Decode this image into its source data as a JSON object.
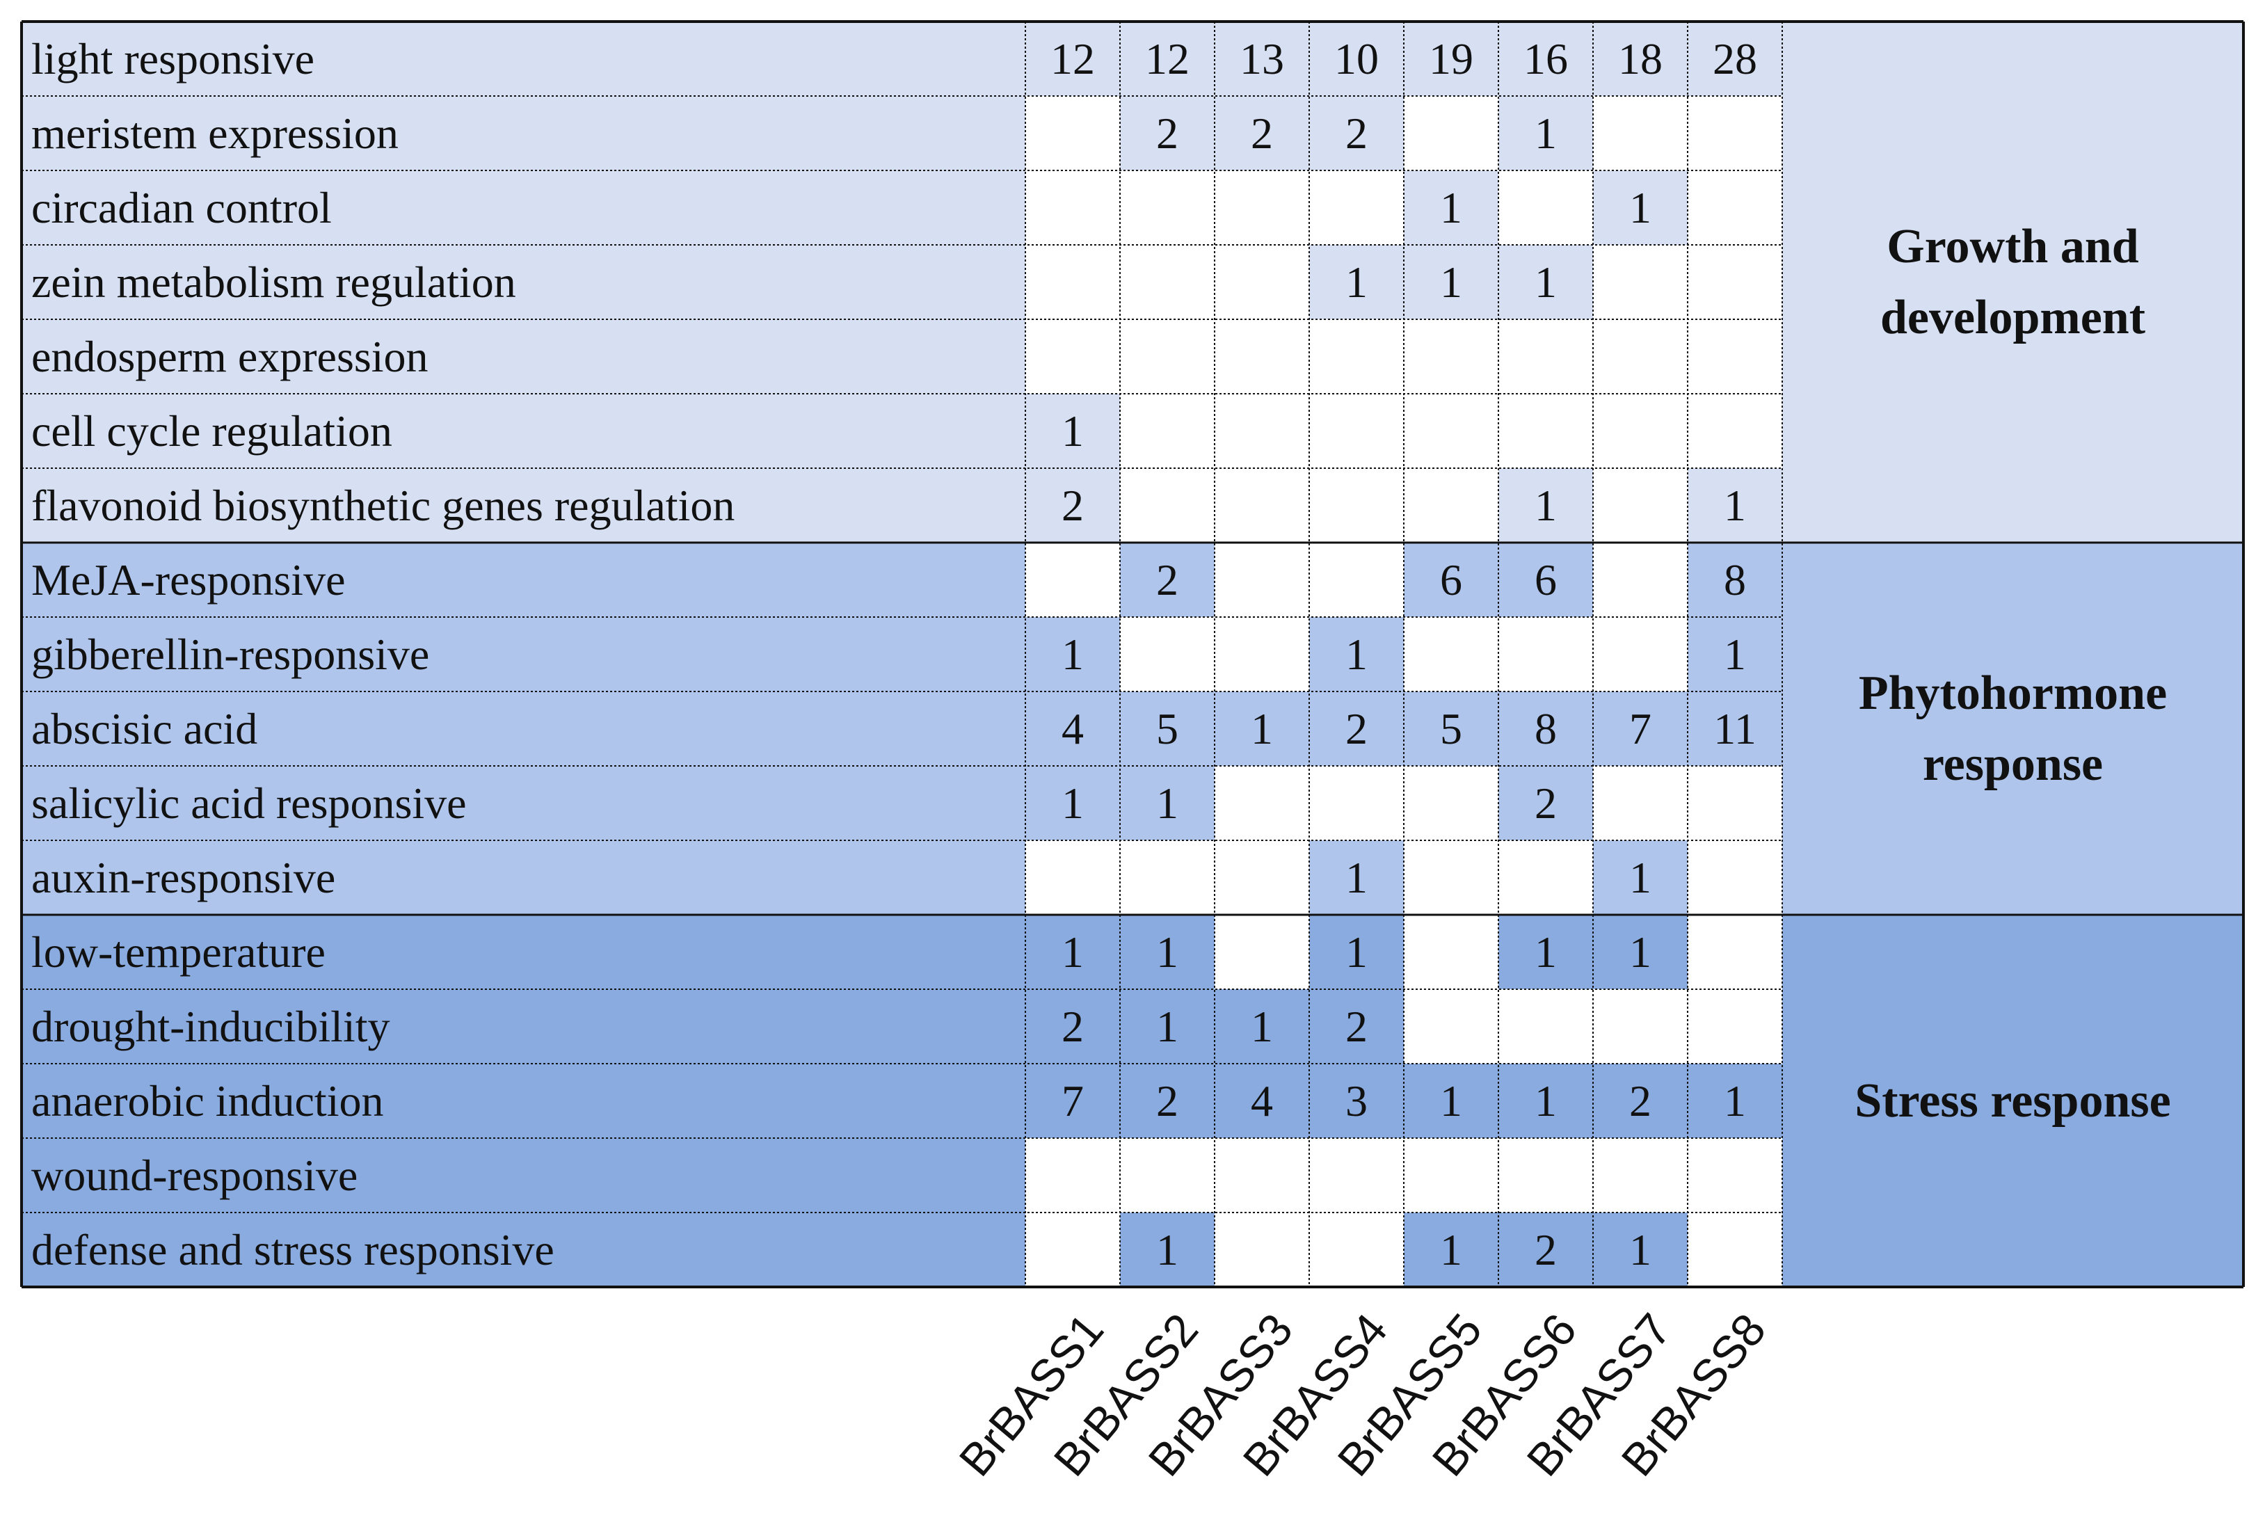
{
  "table": {
    "columns": [
      "BrBASS1",
      "BrBASS2",
      "BrBASS3",
      "BrBASS4",
      "BrBASS5",
      "BrBASS6",
      "BrBASS7",
      "BrBASS8"
    ],
    "groups": [
      {
        "label": "Growth and development",
        "rows": [
          {
            "label": "light responsive",
            "values": [
              12,
              12,
              13,
              10,
              19,
              16,
              18,
              28
            ]
          },
          {
            "label": "meristem expression",
            "values": [
              null,
              2,
              2,
              2,
              null,
              1,
              null,
              null
            ]
          },
          {
            "label": "circadian control",
            "values": [
              null,
              null,
              null,
              null,
              1,
              null,
              1,
              null
            ]
          },
          {
            "label": "zein metabolism regulation",
            "values": [
              null,
              null,
              null,
              1,
              1,
              1,
              null,
              null
            ]
          },
          {
            "label": "endosperm expression",
            "values": [
              null,
              null,
              null,
              null,
              null,
              null,
              null,
              null
            ]
          },
          {
            "label": "cell cycle regulation",
            "values": [
              1,
              null,
              null,
              null,
              null,
              null,
              null,
              null
            ]
          },
          {
            "label": "flavonoid biosynthetic genes regulation",
            "values": [
              2,
              null,
              null,
              null,
              null,
              1,
              null,
              1
            ]
          }
        ]
      },
      {
        "label": "Phytohormone response",
        "rows": [
          {
            "label": "MeJA-responsive",
            "values": [
              null,
              2,
              null,
              null,
              6,
              6,
              null,
              8
            ]
          },
          {
            "label": "gibberellin-responsive",
            "values": [
              1,
              null,
              null,
              1,
              null,
              null,
              null,
              1
            ]
          },
          {
            "label": "abscisic acid",
            "values": [
              4,
              5,
              1,
              2,
              5,
              8,
              7,
              11
            ]
          },
          {
            "label": "salicylic acid responsive",
            "values": [
              1,
              1,
              null,
              null,
              null,
              2,
              null,
              null
            ]
          },
          {
            "label": "auxin-responsive",
            "values": [
              null,
              null,
              null,
              1,
              null,
              null,
              1,
              null
            ]
          }
        ]
      },
      {
        "label": "Stress response",
        "rows": [
          {
            "label": "low-temperature",
            "values": [
              1,
              1,
              null,
              1,
              null,
              1,
              1,
              null
            ]
          },
          {
            "label": "drought-inducibility",
            "values": [
              2,
              1,
              1,
              2,
              null,
              null,
              null,
              null
            ]
          },
          {
            "label": "anaerobic induction",
            "values": [
              7,
              2,
              4,
              3,
              1,
              1,
              2,
              1
            ]
          },
          {
            "label": "wound-responsive",
            "values": [
              null,
              null,
              null,
              null,
              null,
              null,
              null,
              null
            ]
          },
          {
            "label": "defense and stress responsive",
            "values": [
              null,
              1,
              null,
              null,
              1,
              2,
              1,
              null
            ]
          }
        ]
      }
    ]
  }
}
